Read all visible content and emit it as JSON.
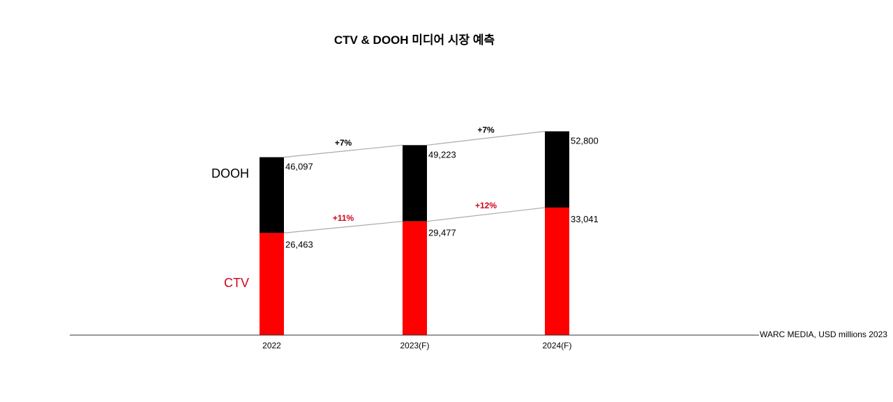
{
  "chart_data": {
    "type": "bar",
    "stacked": true,
    "title": "CTV & DOOH 미디어 시장 예측",
    "categories": [
      "2022",
      "2023(F)",
      "2024(F)"
    ],
    "series": [
      {
        "name": "CTV",
        "values": [
          26463,
          29477,
          33041
        ],
        "color": "#ff0000"
      },
      {
        "name": "DOOH",
        "values": [
          46097,
          49223,
          52800
        ],
        "color": "#000000"
      }
    ],
    "value_labels": {
      "CTV": [
        "26,463",
        "29,477",
        "33,041"
      ],
      "DOOH": [
        "46,097",
        "49,223",
        "52,800"
      ]
    },
    "growth_annotations": {
      "CTV": [
        "+11%",
        "+12%"
      ],
      "DOOH": [
        "+7%",
        "+7%"
      ]
    },
    "source": "WARC MEDIA, USD millions 2023",
    "legend_placement": "left",
    "grid": false
  }
}
